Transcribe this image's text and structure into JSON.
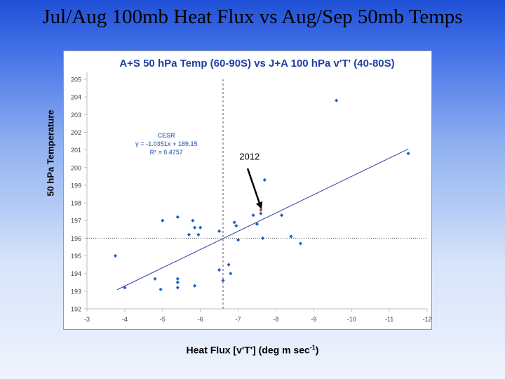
{
  "slide": {
    "title": "Jul/Aug 100mb Heat Flux vs Aug/Sep 50mb Temps",
    "ylabel": "50 hPa Temperature",
    "xlabel_main": "Heat Flux [v'T'] (deg m sec",
    "xlabel_sup": "-1",
    "xlabel_end": ")"
  },
  "chart_data": {
    "type": "scatter",
    "title": "A+S 50 hPa Temp (60-90S) vs J+A 100 hPa v'T' (40-80S)",
    "x_ticks": [
      "-3",
      "-4",
      "-5",
      "-6",
      "-7",
      "-8",
      "-9",
      "-10",
      "-11",
      "-12"
    ],
    "x_tick_values": [
      -3,
      -4,
      -5,
      -6,
      -7,
      -8,
      -9,
      -10,
      -11,
      -12
    ],
    "y_ticks": [
      "192",
      "193",
      "194",
      "195",
      "196",
      "197",
      "198",
      "199",
      "200",
      "201",
      "202",
      "203",
      "204",
      "205"
    ],
    "y_tick_values": [
      192,
      193,
      194,
      195,
      196,
      197,
      198,
      199,
      200,
      201,
      202,
      203,
      204,
      205
    ],
    "xlim": [
      -3,
      -12
    ],
    "ylim": [
      192,
      205
    ],
    "x_reversed": true,
    "points": [
      {
        "x": -3.75,
        "y": 195.0
      },
      {
        "x": -4.0,
        "y": 193.2
      },
      {
        "x": -4.8,
        "y": 193.7
      },
      {
        "x": -4.95,
        "y": 193.1
      },
      {
        "x": -5.0,
        "y": 197.0
      },
      {
        "x": -5.4,
        "y": 197.2
      },
      {
        "x": -5.4,
        "y": 193.7
      },
      {
        "x": -5.4,
        "y": 193.5
      },
      {
        "x": -5.4,
        "y": 193.2
      },
      {
        "x": -5.7,
        "y": 196.2
      },
      {
        "x": -5.8,
        "y": 197.0
      },
      {
        "x": -5.85,
        "y": 196.6
      },
      {
        "x": -5.85,
        "y": 193.3
      },
      {
        "x": -5.95,
        "y": 196.2
      },
      {
        "x": -6.0,
        "y": 196.6
      },
      {
        "x": -6.5,
        "y": 196.4
      },
      {
        "x": -6.5,
        "y": 194.2
      },
      {
        "x": -6.6,
        "y": 193.6
      },
      {
        "x": -6.75,
        "y": 194.5
      },
      {
        "x": -6.8,
        "y": 194.0
      },
      {
        "x": -6.9,
        "y": 196.9
      },
      {
        "x": -6.95,
        "y": 196.7
      },
      {
        "x": -7.0,
        "y": 195.9
      },
      {
        "x": -7.4,
        "y": 197.3
      },
      {
        "x": -7.5,
        "y": 196.8
      },
      {
        "x": -7.6,
        "y": 197.4
      },
      {
        "x": -7.65,
        "y": 196.0
      },
      {
        "x": -7.7,
        "y": 199.3
      },
      {
        "x": -8.15,
        "y": 197.3
      },
      {
        "x": -8.4,
        "y": 196.1
      },
      {
        "x": -8.65,
        "y": 195.7
      },
      {
        "x": -9.6,
        "y": 203.8
      },
      {
        "x": -11.5,
        "y": 200.8
      }
    ],
    "highlight_point": {
      "x": -7.6,
      "y": 197.6
    },
    "trendline": {
      "slope": -1.0351,
      "intercept": 189.15,
      "x_start": -3.8,
      "x_end": -11.5
    },
    "ref_lines": {
      "x": -6.6,
      "y": 196.0
    },
    "annotation": {
      "label": "2012",
      "text_x": -7.3,
      "text_y": 200.45,
      "arrow_from_x": -7.25,
      "arrow_from_y": 199.95,
      "arrow_to_x": -7.6,
      "arrow_to_y": 197.6
    },
    "equation_lines": [
      "CESR",
      "y = -1.0351x + 189.15",
      "R² = 0.4757"
    ],
    "equation_pos": {
      "x": -5.1,
      "y": 201.7
    },
    "grid": false,
    "legend": "none",
    "colors": {
      "point": "#1f5fc7",
      "highlight": "#e23a2a",
      "trendline": "#3a3aa8",
      "chart_title": "#1f3fa0",
      "equation": "#5a7fc8",
      "axis": "#bfbfbf",
      "ref_line": "#555555",
      "tick_text": "#404040"
    }
  }
}
